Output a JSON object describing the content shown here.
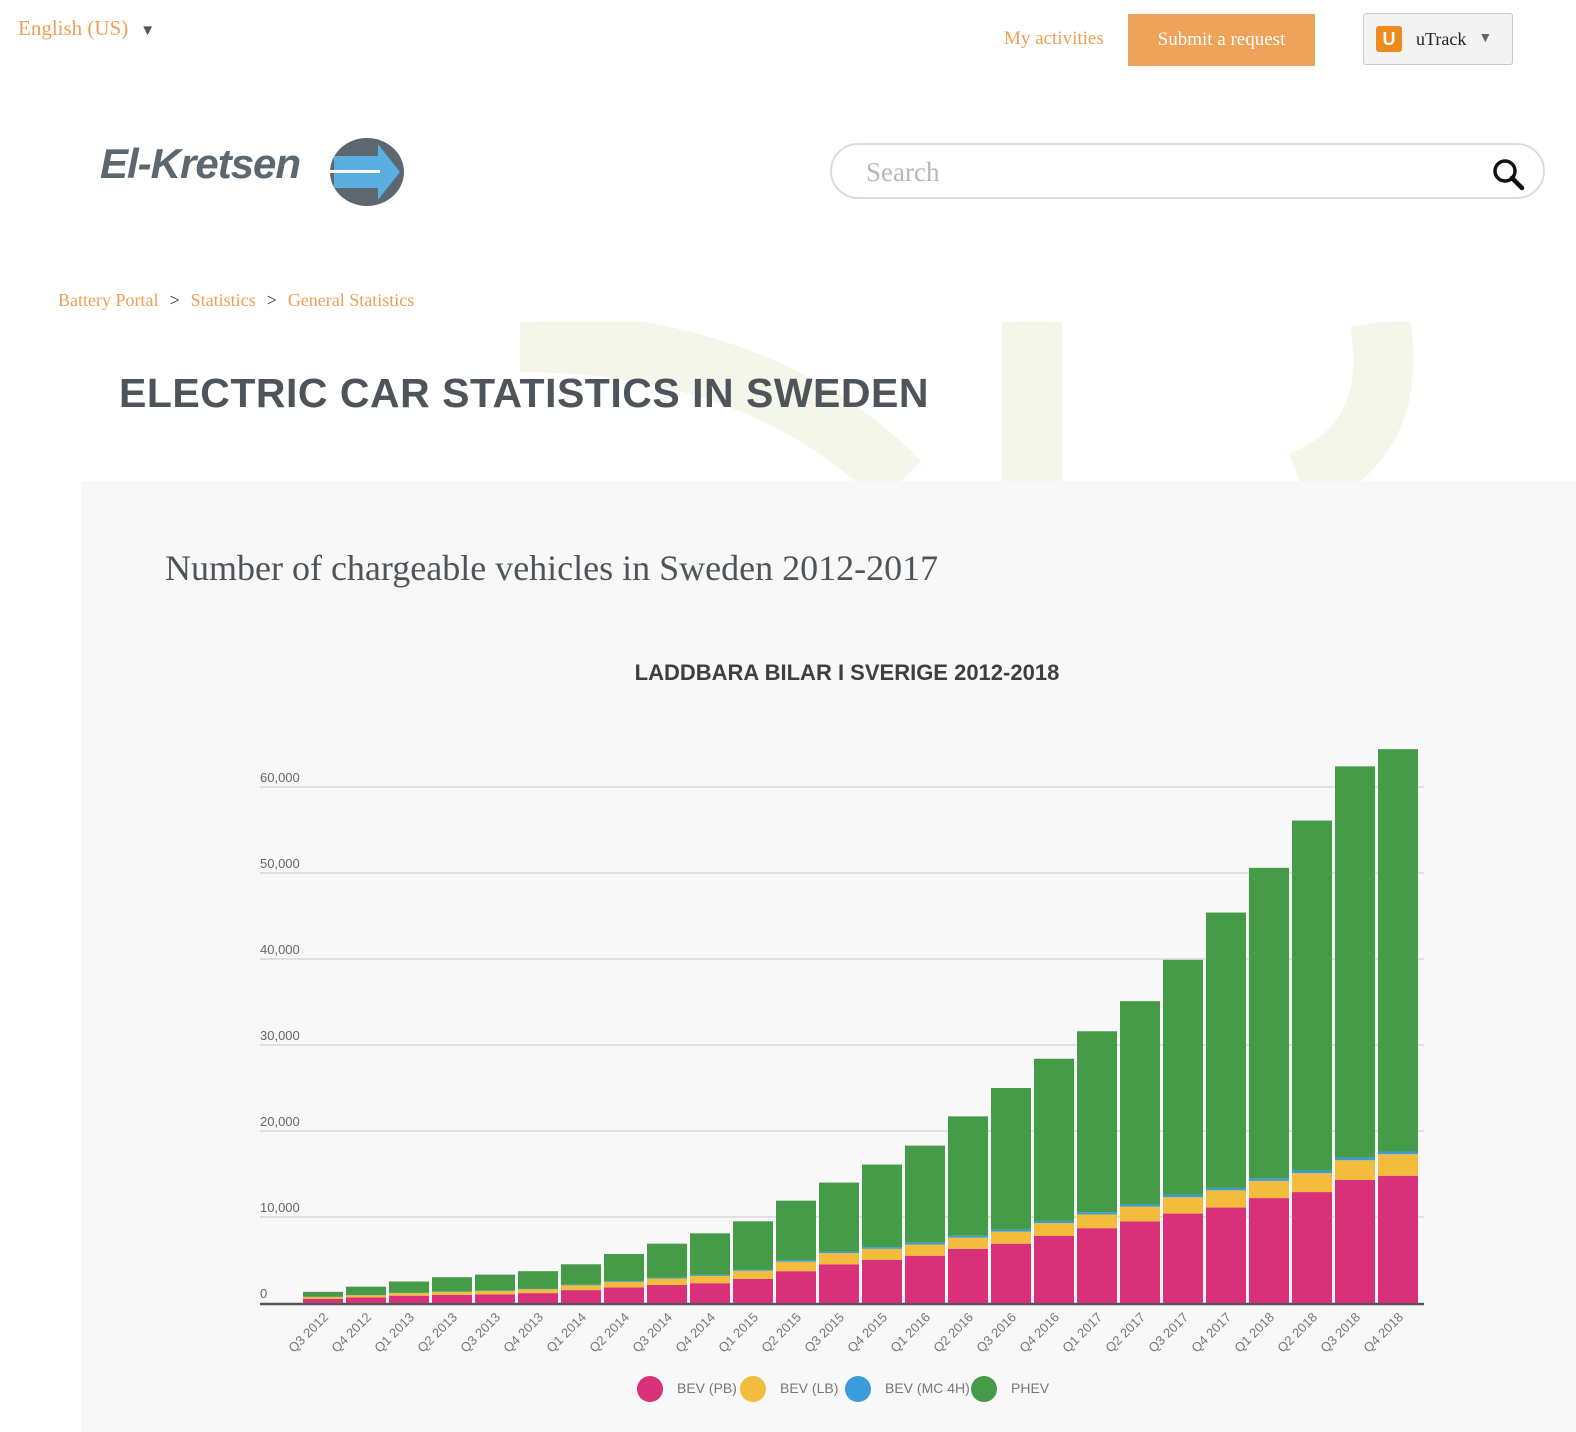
{
  "topbar": {
    "language": "English (US)",
    "my_activities": "My activities",
    "submit_request": "Submit a request",
    "utrack_label": "uTrack",
    "utrack_logo_letter": "U"
  },
  "brand": {
    "logo_text": "El-Kretsen"
  },
  "search": {
    "placeholder": "Search"
  },
  "breadcrumb": [
    "Battery Portal",
    "Statistics",
    "General Statistics"
  ],
  "page_title": "ELECTRIC CAR STATISTICS IN SWEDEN",
  "section_title": "Number of chargeable vehicles in Sweden 2012-2017",
  "colors": {
    "accent": "#efa35a",
    "link": "#ee9f55",
    "bev_pb": "#d83079",
    "bev_lb": "#f3bc3c",
    "bev_mc": "#3c9bd9",
    "phev": "#459b48"
  },
  "chart_data": {
    "type": "bar",
    "stacked": true,
    "title": "LADDBARA BILAR I SVERIGE 2012-2018",
    "xlabel": "",
    "ylabel": "",
    "ylim": [
      0,
      65000
    ],
    "yticks": [
      0,
      10000,
      20000,
      30000,
      40000,
      50000,
      60000
    ],
    "ytick_labels": [
      "0",
      "10,000",
      "20,000",
      "30,000",
      "40,000",
      "50,000",
      "60,000"
    ],
    "grid": true,
    "legend": "bottom",
    "categories": [
      "Q3 2012",
      "Q4 2012",
      "Q1 2013",
      "Q2 2013",
      "Q3 2013",
      "Q4 2013",
      "Q1 2014",
      "Q2 2014",
      "Q3 2014",
      "Q4 2014",
      "Q1 2015",
      "Q2 2015",
      "Q3 2015",
      "Q4 2015",
      "Q1 2016",
      "Q2 2016",
      "Q3 2016",
      "Q4 2016",
      "Q1 2017",
      "Q2 2017",
      "Q3 2017",
      "Q4 2017",
      "Q1 2018",
      "Q2 2018",
      "Q3 2018",
      "Q4 2018"
    ],
    "series": [
      {
        "name": "BEV (PB)",
        "color": "#d83079",
        "values": [
          500,
          650,
          850,
          950,
          1000,
          1150,
          1500,
          1800,
          2100,
          2300,
          2800,
          3700,
          4500,
          5000,
          5500,
          6300,
          6900,
          7800,
          8700,
          9500,
          10400,
          11100,
          12200,
          12900,
          14300,
          14800
        ]
      },
      {
        "name": "BEV (LB)",
        "color": "#f3bc3c",
        "values": [
          200,
          250,
          300,
          350,
          400,
          450,
          550,
          650,
          750,
          850,
          950,
          1100,
          1300,
          1300,
          1300,
          1300,
          1400,
          1500,
          1600,
          1700,
          1900,
          2000,
          2000,
          2200,
          2300,
          2500
        ]
      },
      {
        "name": "BEV (MC 4H)",
        "color": "#3c9bd9",
        "values": [
          20,
          20,
          30,
          30,
          30,
          40,
          60,
          80,
          100,
          120,
          140,
          160,
          180,
          200,
          210,
          220,
          230,
          240,
          250,
          260,
          270,
          280,
          290,
          300,
          310,
          320
        ]
      },
      {
        "name": "PHEV",
        "color": "#459b48",
        "values": [
          580,
          980,
          1320,
          1670,
          1870,
          2060,
          2390,
          3170,
          3950,
          4830,
          5610,
          6940,
          8020,
          9600,
          11290,
          13880,
          16470,
          18860,
          21050,
          23640,
          27330,
          32020,
          36110,
          40700,
          45490,
          46780
        ]
      }
    ]
  }
}
